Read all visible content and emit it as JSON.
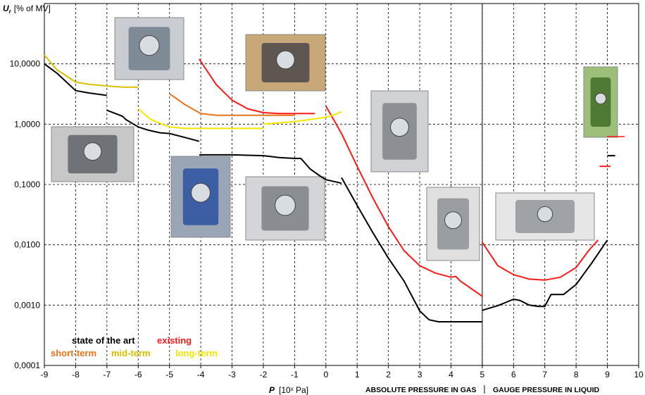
{
  "chart_data": {
    "type": "line",
    "ylabel_symbol": "U",
    "ylabel_sub": "r",
    "ylabel_unit": "[% of MV]",
    "xlabel_symbol": "P",
    "xlabel_unit": "[10ˣ Pa]",
    "region_gas": "ABSOLUTE PRESSURE IN GAS",
    "region_liquid": "GAUGE PRESSURE IN LIQUID",
    "xlim": [
      -9,
      10
    ],
    "ylim": [
      0.0001,
      100
    ],
    "y_scale": "log",
    "grid": true,
    "x_ticks": [
      -9,
      -8,
      -7,
      -6,
      -5,
      -4,
      -3,
      -2,
      -1,
      0,
      1,
      2,
      3,
      4,
      5,
      6,
      7,
      8,
      9,
      10
    ],
    "y_ticks": [
      {
        "value": 10,
        "label": "10,0000"
      },
      {
        "value": 1,
        "label": "1,0000"
      },
      {
        "value": 0.1,
        "label": "0,1000"
      },
      {
        "value": 0.01,
        "label": "0,0100"
      },
      {
        "value": 0.001,
        "label": "0,0010"
      },
      {
        "value": 0.0001,
        "label": "0,0001"
      }
    ],
    "legend": [
      {
        "label": "state of the art",
        "color": "#000000"
      },
      {
        "label": "existing",
        "color": "#ff1a1a"
      },
      {
        "label": "short-term",
        "color": "#e8731a"
      },
      {
        "label": "mid-term",
        "color": "#d9c000"
      },
      {
        "label": "long-term",
        "color": "#f5e600"
      }
    ],
    "legend_placement": "bottom-left",
    "photo_count": 10,
    "series": [
      {
        "name": "state of the art",
        "color": "#000000",
        "segments": [
          [
            [
              -9,
              10
            ],
            [
              -8.6,
              7
            ],
            [
              -8,
              3.6
            ],
            [
              -7.6,
              3.3
            ],
            [
              -7,
              3.0
            ]
          ],
          [
            [
              -7,
              1.7
            ],
            [
              -6.5,
              1.35
            ],
            [
              -6.4,
              1.2
            ],
            [
              -6,
              0.9
            ],
            [
              -5.7,
              0.8
            ],
            [
              -5.3,
              0.72
            ],
            [
              -5,
              0.7
            ],
            [
              -4.5,
              0.6
            ],
            [
              -4.05,
              0.52
            ]
          ],
          [
            [
              -4.05,
              0.31
            ],
            [
              -3,
              0.31
            ],
            [
              -2,
              0.3
            ],
            [
              -1.5,
              0.28
            ],
            [
              -1,
              0.27
            ],
            [
              -0.8,
              0.27
            ],
            [
              -0.5,
              0.18
            ],
            [
              -0.2,
              0.14
            ],
            [
              0,
              0.12
            ],
            [
              0.5,
              0.105
            ]
          ],
          [
            [
              0.5,
              0.13
            ],
            [
              1,
              0.045
            ],
            [
              1.5,
              0.016
            ],
            [
              2,
              0.006
            ],
            [
              2.5,
              0.0025
            ],
            [
              3,
              0.0008
            ],
            [
              3.3,
              0.00057
            ],
            [
              3.6,
              0.00053
            ],
            [
              4,
              0.00053
            ],
            [
              5,
              0.00053
            ]
          ],
          [
            [
              5,
              0.00082
            ],
            [
              5.5,
              0.00098
            ],
            [
              6,
              0.00125
            ],
            [
              6.2,
              0.0012
            ],
            [
              6.5,
              0.001
            ],
            [
              6.8,
              0.00095
            ],
            [
              7,
              0.00095
            ],
            [
              7.2,
              0.0015
            ],
            [
              7.6,
              0.0015
            ],
            [
              8,
              0.0022
            ],
            [
              8.5,
              0.005
            ],
            [
              9,
              0.012
            ]
          ],
          [
            [
              9,
              0.3
            ],
            [
              9.25,
              0.3
            ]
          ]
        ]
      },
      {
        "name": "existing",
        "color": "#ff1a1a",
        "segments": [
          [
            [
              -4.05,
              12
            ],
            [
              -3.5,
              4.5
            ],
            [
              -3,
              2.5
            ],
            [
              -2.5,
              1.8
            ],
            [
              -2,
              1.55
            ],
            [
              -1.5,
              1.5
            ],
            [
              -1,
              1.5
            ],
            [
              -0.6,
              1.5
            ],
            [
              -0.35,
              1.5
            ]
          ],
          [
            [
              0,
              2.0
            ],
            [
              0.5,
              0.7
            ],
            [
              1,
              0.2
            ],
            [
              1.5,
              0.06
            ],
            [
              2,
              0.02
            ],
            [
              2.5,
              0.008
            ],
            [
              3,
              0.0045
            ],
            [
              3.5,
              0.0034
            ],
            [
              4,
              0.0029
            ],
            [
              4.15,
              0.003
            ],
            [
              4.3,
              0.0025
            ],
            [
              4.7,
              0.0018
            ],
            [
              5,
              0.0014
            ]
          ],
          [
            [
              5,
              0.011
            ],
            [
              5.5,
              0.0045
            ],
            [
              6,
              0.0032
            ],
            [
              6.5,
              0.0027
            ],
            [
              7,
              0.0026
            ],
            [
              7.5,
              0.0029
            ],
            [
              8,
              0.0042
            ],
            [
              8.4,
              0.008
            ],
            [
              8.7,
              0.012
            ]
          ],
          [
            [
              8.75,
              0.2
            ],
            [
              9.1,
              0.2
            ]
          ]
        ]
      },
      {
        "name": "short-term",
        "color": "#e8731a",
        "segments": [
          [
            [
              -5,
              3.2
            ],
            [
              -4.5,
              2.1
            ],
            [
              -4,
              1.5
            ],
            [
              -3.5,
              1.4
            ],
            [
              -3,
              1.4
            ],
            [
              -2.5,
              1.4
            ],
            [
              -2,
              1.4
            ],
            [
              -1,
              1.4
            ]
          ]
        ]
      },
      {
        "name": "mid-term",
        "color": "#d9c000",
        "segments": [
          [
            [
              -9,
              14
            ],
            [
              -8.6,
              8
            ],
            [
              -8,
              5
            ],
            [
              -7.6,
              4.6
            ],
            [
              -7,
              4.3
            ],
            [
              -6.5,
              4.1
            ],
            [
              -6.0,
              4.1
            ]
          ]
        ]
      },
      {
        "name": "long-term",
        "color": "#f5e600",
        "segments": [
          [
            [
              -6,
              1.8
            ],
            [
              -5.6,
              1.2
            ],
            [
              -5,
              0.9
            ],
            [
              -4.5,
              0.85
            ],
            [
              -4,
              0.85
            ],
            [
              -3,
              0.85
            ],
            [
              -2.5,
              0.85
            ],
            [
              -2,
              0.85
            ]
          ],
          [
            [
              -2,
              1.0
            ],
            [
              -1.5,
              1.05
            ],
            [
              -1,
              1.1
            ],
            [
              -0.5,
              1.2
            ],
            [
              0,
              1.3
            ],
            [
              0.3,
              1.45
            ],
            [
              0.5,
              1.6
            ]
          ]
        ]
      }
    ]
  }
}
